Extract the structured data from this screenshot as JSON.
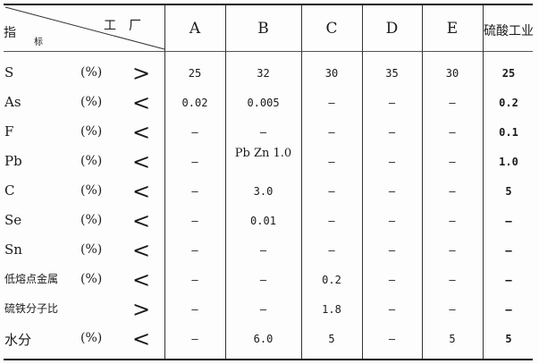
{
  "header": {
    "corner_top": "工　厂",
    "corner_left": "指",
    "corner_sub": "标",
    "columns": [
      "A",
      "B",
      "C",
      "D",
      "E",
      "硫酸工业"
    ]
  },
  "rows": [
    {
      "label": "S",
      "unit": "(%)",
      "rel": ">",
      "values": [
        "25",
        "32",
        "30",
        "35",
        "30",
        "25"
      ]
    },
    {
      "label": "As",
      "unit": "(%)",
      "rel": "<",
      "values": [
        "0.02",
        "0.005",
        "—",
        "—",
        "—",
        "0.2"
      ]
    },
    {
      "label": "F",
      "unit": "(%)",
      "rel": "<",
      "values": [
        "—",
        "—",
        "—",
        "—",
        "—",
        "0.1"
      ]
    },
    {
      "label": "Pb",
      "unit": "(%)",
      "rel": "<",
      "values": [
        "—",
        "Pb Zn 1.0",
        "—",
        "—",
        "—",
        "1.0"
      ]
    },
    {
      "label": "C",
      "unit": "(%)",
      "rel": "<",
      "values": [
        "—",
        "3.0",
        "—",
        "—",
        "—",
        "5"
      ]
    },
    {
      "label": "Se",
      "unit": "(%)",
      "rel": "<",
      "values": [
        "—",
        "0.01",
        "—",
        "—",
        "—",
        "—"
      ]
    },
    {
      "label": "Sn",
      "unit": "(%)",
      "rel": "<",
      "values": [
        "—",
        "—",
        "—",
        "—",
        "—",
        "—"
      ]
    },
    {
      "label": "低熔点金属",
      "unit": "(%)",
      "rel": "<",
      "values": [
        "—",
        "—",
        "0.2",
        "—",
        "—",
        "—"
      ]
    },
    {
      "label": "硫铁分子比",
      "unit": "",
      "rel": ">",
      "values": [
        "—",
        "—",
        "1.8",
        "—",
        "—",
        "—"
      ]
    },
    {
      "label": "水分",
      "unit": "(%)",
      "rel": "<",
      "values": [
        "—",
        "6.0",
        "5",
        "—",
        "5",
        "5"
      ]
    }
  ]
}
